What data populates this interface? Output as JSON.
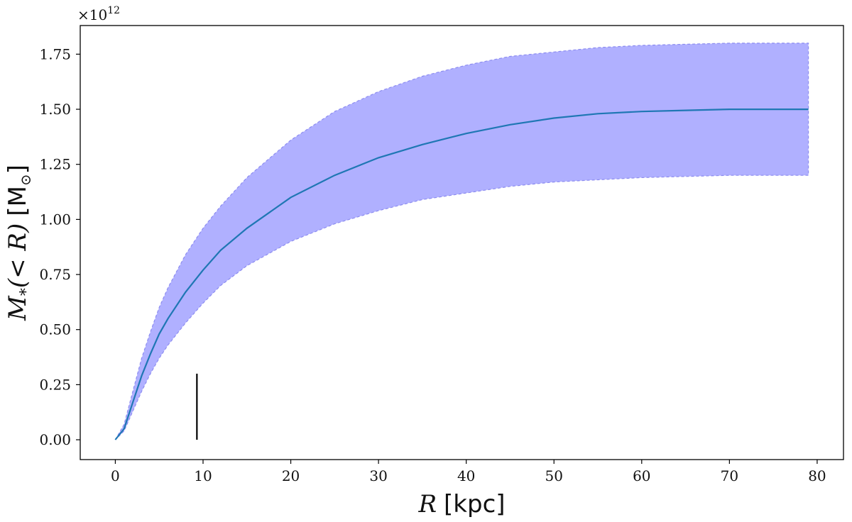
{
  "chart_data": {
    "type": "area",
    "x_offset_text": "",
    "y_offset_text": "×10",
    "y_offset_exponent": "12",
    "xlabel": {
      "symbol": "R",
      "unit": "[kpc]"
    },
    "ylabel": {
      "symbol": "M",
      "subscript": "*",
      "arg": "(< R)",
      "unit": "[M",
      "unit_sub": "⊙",
      "unit_close": "]"
    },
    "xlim": [
      -4,
      83
    ],
    "ylim": [
      -0.09,
      1.88
    ],
    "xticks": [
      0,
      10,
      20,
      30,
      40,
      50,
      60,
      70,
      80
    ],
    "xtick_labels": [
      "0",
      "10",
      "20",
      "30",
      "40",
      "50",
      "60",
      "70",
      "80"
    ],
    "yticks": [
      0.0,
      0.25,
      0.5,
      0.75,
      1.0,
      1.25,
      1.5,
      1.75
    ],
    "ytick_labels": [
      "0.00",
      "0.25",
      "0.50",
      "0.75",
      "1.00",
      "1.25",
      "1.50",
      "1.75"
    ],
    "grid": false,
    "colors": {
      "line": "#1f77b4",
      "band_fill": "#b0b0ff",
      "band_edge": "#8c8cf0",
      "marker": "#000000"
    },
    "series": [
      {
        "role": "median",
        "style": "solid",
        "x": [
          0,
          1,
          2,
          3,
          4,
          5,
          6,
          8,
          10,
          12,
          15,
          20,
          25,
          30,
          35,
          40,
          45,
          50,
          55,
          60,
          65,
          70,
          75,
          79
        ],
        "y": [
          0.0,
          0.05,
          0.17,
          0.29,
          0.39,
          0.48,
          0.55,
          0.67,
          0.77,
          0.86,
          0.96,
          1.1,
          1.2,
          1.28,
          1.34,
          1.39,
          1.43,
          1.46,
          1.48,
          1.49,
          1.495,
          1.5,
          1.5,
          1.5
        ]
      },
      {
        "role": "upper bound",
        "style": "dashed",
        "x": [
          0,
          1,
          2,
          3,
          4,
          5,
          6,
          8,
          10,
          12,
          15,
          20,
          25,
          30,
          35,
          40,
          45,
          50,
          55,
          60,
          65,
          70,
          75,
          79
        ],
        "y": [
          0.0,
          0.07,
          0.22,
          0.37,
          0.49,
          0.6,
          0.69,
          0.84,
          0.96,
          1.06,
          1.19,
          1.36,
          1.49,
          1.58,
          1.65,
          1.7,
          1.74,
          1.76,
          1.78,
          1.79,
          1.795,
          1.8,
          1.8,
          1.8
        ]
      },
      {
        "role": "lower bound",
        "style": "dashed",
        "x": [
          0,
          1,
          2,
          3,
          4,
          5,
          6,
          8,
          10,
          12,
          15,
          20,
          25,
          30,
          35,
          40,
          45,
          50,
          55,
          60,
          65,
          70,
          75,
          79
        ],
        "y": [
          0.0,
          0.04,
          0.13,
          0.22,
          0.3,
          0.37,
          0.43,
          0.53,
          0.62,
          0.7,
          0.79,
          0.9,
          0.98,
          1.04,
          1.09,
          1.12,
          1.15,
          1.17,
          1.18,
          1.19,
          1.195,
          1.2,
          1.2,
          1.2
        ]
      }
    ],
    "annotations": [
      {
        "type": "vertical-line",
        "x": 9.3,
        "y_range": [
          0.0,
          0.3
        ]
      }
    ]
  }
}
